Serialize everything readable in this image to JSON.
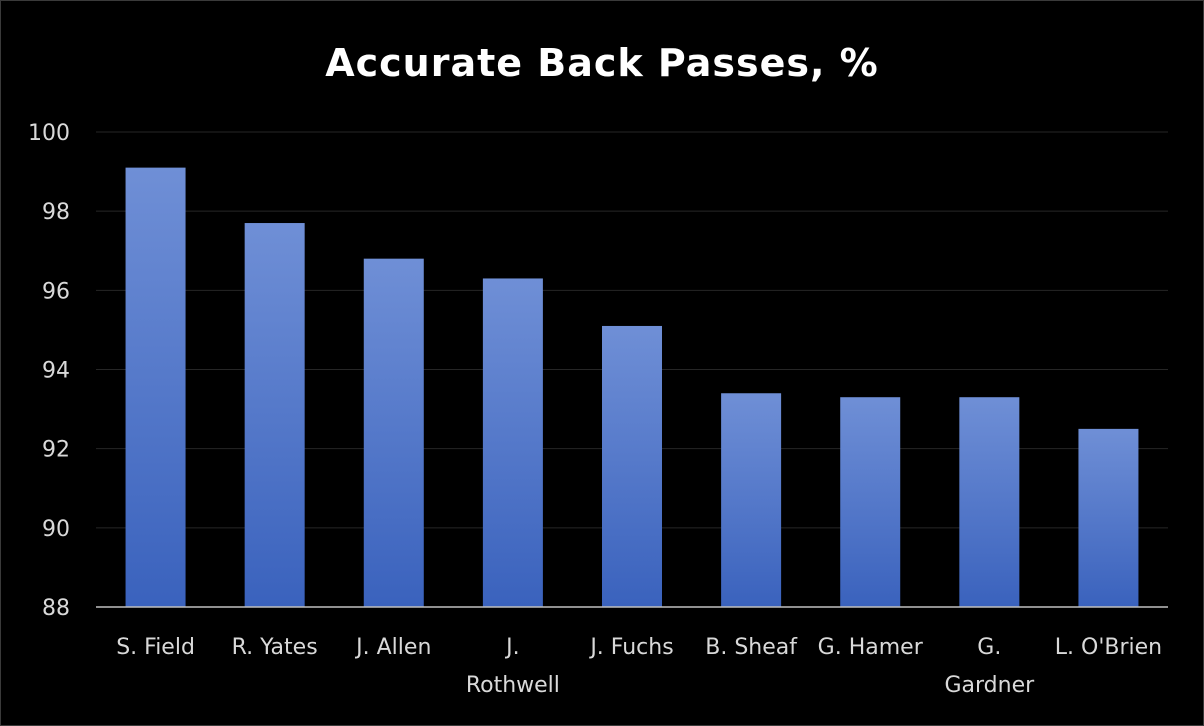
{
  "chart_data": {
    "type": "bar",
    "title": "Accurate Back Passes, %",
    "xlabel": "",
    "ylabel": "",
    "categories": [
      "S. Field",
      "R. Yates",
      "J. Allen",
      "J. Rothwell",
      "J. Fuchs",
      "B. Sheaf",
      "G. Hamer",
      "G. Gardner",
      "L. O'Brien"
    ],
    "category_lines": [
      [
        "S. Field"
      ],
      [
        "R. Yates"
      ],
      [
        "J. Allen"
      ],
      [
        "J.",
        "Rothwell"
      ],
      [
        "J. Fuchs"
      ],
      [
        "B. Sheaf"
      ],
      [
        "G. Hamer"
      ],
      [
        "G.",
        "Gardner"
      ],
      [
        "L. O'Brien"
      ]
    ],
    "values": [
      99.1,
      97.7,
      96.8,
      96.3,
      95.1,
      93.4,
      93.3,
      93.3,
      92.5
    ],
    "ylim": [
      88,
      100
    ],
    "yticks": [
      88,
      90,
      92,
      94,
      96,
      98,
      100
    ],
    "grid": true,
    "legend": "none",
    "colors": {
      "bar_top": "#6f8fd6",
      "bar_bottom": "#3a62bd",
      "background": "#000000",
      "grid": "#262626",
      "axis": "#bfbfbf",
      "title": "#ffffff",
      "labels": "#d9d9d9"
    }
  }
}
